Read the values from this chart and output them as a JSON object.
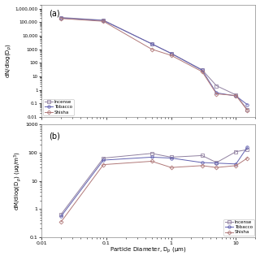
{
  "x_values": [
    0.02,
    0.09,
    0.5,
    1.0,
    3.0,
    5.0,
    10.0,
    15.0
  ],
  "panel_a": {
    "incense": [
      220000,
      140000,
      2500,
      500,
      30,
      2.0,
      0.42,
      0.035
    ],
    "tobacco": [
      200000,
      130000,
      2500,
      480,
      28,
      0.6,
      0.35,
      0.08
    ],
    "shisha": [
      185000,
      115000,
      1000,
      350,
      22,
      0.5,
      0.38,
      0.03
    ]
  },
  "panel_b": {
    "incense": [
      0.65,
      65,
      95,
      70,
      80,
      45,
      110,
      130
    ],
    "tobacco": [
      0.55,
      55,
      70,
      65,
      45,
      43,
      40,
      160
    ],
    "shisha": [
      0.35,
      38,
      50,
      30,
      35,
      30,
      35,
      65
    ]
  },
  "colors": {
    "incense": "#9080A0",
    "tobacco": "#6060B0",
    "shisha": "#B07878"
  },
  "xlabel": "Particle Diameter, D$_p$ (μm)",
  "ylabel_a": "dN/dlog(D$_p$)",
  "ylabel_b": "dM/dlog(D$_p$) (μg/m$^3$)",
  "label_a": "(a)",
  "label_b": "(b)",
  "xlim": [
    0.01,
    20
  ],
  "ylim_a": [
    0.01,
    2000000
  ],
  "ylim_b": [
    0.1,
    1000
  ],
  "bg_color": "#ffffff",
  "yticks_a": [
    0.01,
    0.1,
    1,
    10,
    100,
    1000,
    10000,
    100000,
    1000000
  ],
  "ytick_labels_a": [
    "0.01",
    "0.1",
    "1",
    "10",
    "100",
    "1000",
    "10,000",
    "100,000",
    "1,000,000"
  ],
  "xticks": [
    0.01,
    0.1,
    1,
    10
  ],
  "xtick_labels": [
    "0.01",
    "0.1",
    "1",
    "10"
  ],
  "yticks_b": [
    0.1,
    1,
    10,
    100,
    1000
  ],
  "ytick_labels_b": [
    "0.1",
    "1",
    "10",
    "100",
    "1000"
  ]
}
